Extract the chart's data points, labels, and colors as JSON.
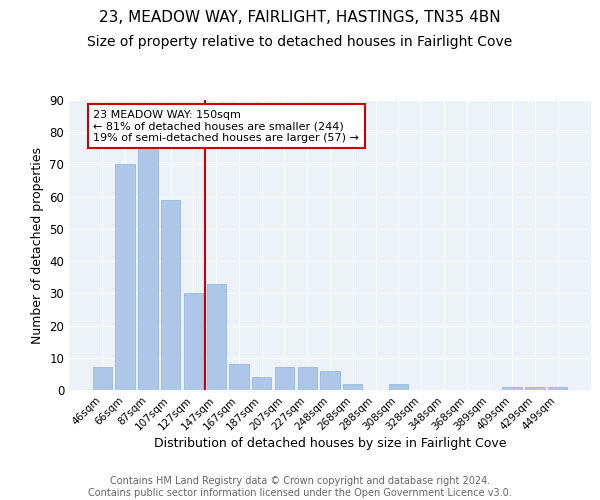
{
  "title": "23, MEADOW WAY, FAIRLIGHT, HASTINGS, TN35 4BN",
  "subtitle": "Size of property relative to detached houses in Fairlight Cove",
  "xlabel": "Distribution of detached houses by size in Fairlight Cove",
  "ylabel": "Number of detached properties",
  "categories": [
    "46sqm",
    "66sqm",
    "87sqm",
    "107sqm",
    "127sqm",
    "147sqm",
    "167sqm",
    "187sqm",
    "207sqm",
    "227sqm",
    "248sqm",
    "268sqm",
    "288sqm",
    "308sqm",
    "328sqm",
    "348sqm",
    "368sqm",
    "389sqm",
    "409sqm",
    "429sqm",
    "449sqm"
  ],
  "values": [
    7,
    70,
    75,
    59,
    30,
    33,
    8,
    4,
    7,
    7,
    6,
    2,
    0,
    2,
    0,
    0,
    0,
    0,
    1,
    1,
    1
  ],
  "bar_color": "#aec6e8",
  "bar_edge_color": "#8ab4d8",
  "vline_color": "#cc0000",
  "vline_index": 4.5,
  "annotation_text": "23 MEADOW WAY: 150sqm\n← 81% of detached houses are smaller (244)\n19% of semi-detached houses are larger (57) →",
  "annotation_box_color": "#ffffff",
  "annotation_box_edge_color": "#cc0000",
  "ylim": [
    0,
    90
  ],
  "yticks": [
    0,
    10,
    20,
    30,
    40,
    50,
    60,
    70,
    80,
    90
  ],
  "background_color": "#edf2f9",
  "footer_text": "Contains HM Land Registry data © Crown copyright and database right 2024.\nContains public sector information licensed under the Open Government Licence v3.0.",
  "title_fontsize": 11,
  "subtitle_fontsize": 10,
  "xlabel_fontsize": 9,
  "ylabel_fontsize": 9,
  "footer_fontsize": 7
}
